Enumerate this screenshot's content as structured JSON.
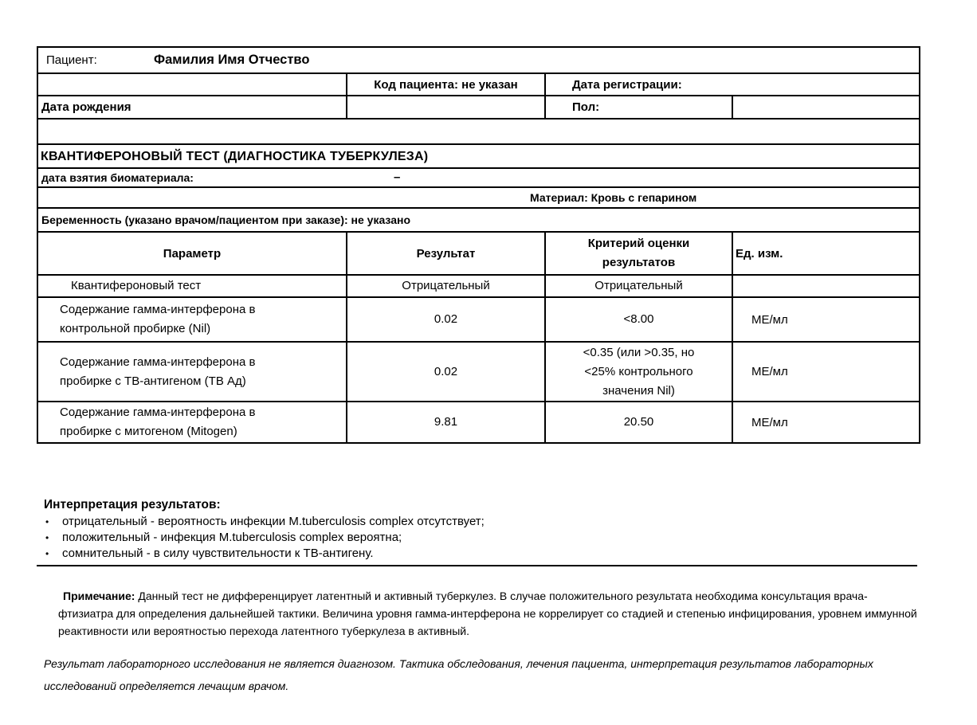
{
  "patient": {
    "label": "Пациент:",
    "name": "Фамилия Имя Отчество",
    "code_label": "Код пациента: не указан",
    "registration_label": "Дата регистрации:",
    "birth_date_label": "Дата рождения",
    "sex_label": "Пол:"
  },
  "test": {
    "title": "КВАНТИФЕРОНОВЫЙ ТЕСТ (ДИАГНОСТИКА ТУБЕРКУЛЕЗА)",
    "sample_date_label": "дата взятия биоматериала:",
    "sample_date_value": "–",
    "material": "Материал: Кровь с гепарином",
    "pregnancy": "Беременность (указано врачом/пациентом при заказе): не указано"
  },
  "results_table": {
    "headers": {
      "parameter": "Параметр",
      "result": "Результат",
      "criteria": "Критерий оценки результатов",
      "units": "Ед. изм."
    },
    "rows": [
      {
        "parameter": "Квантифероновый тест",
        "result": "Отрицательный",
        "criteria": "Отрицательный",
        "unit": ""
      },
      {
        "parameter": "Содержание гамма-интерферона в контрольной пробирке (Nil)",
        "result": "0.02",
        "criteria": "<8.00",
        "unit": "МЕ/мл"
      },
      {
        "parameter": "Содержание гамма-интерферона в пробирке с ТВ-антигеном (ТВ Ад)",
        "result": "0.02",
        "criteria": "<0.35 (или >0.35, но <25% контрольного значения Nil)",
        "unit": "МЕ/мл"
      },
      {
        "parameter": "Содержание гамма-интерферона в пробирке с митогеном (Mitogen)",
        "result": "9.81",
        "criteria": "20.50",
        "unit": "МЕ/мл"
      }
    ]
  },
  "interpretation": {
    "title": "Интерпретация результатов:",
    "items": [
      "отрицательный - вероятность инфекции M.tuberculosis complex отсутствует;",
      "положительный - инфекция M.tuberculosis complex вероятна;",
      "сомнительный - в силу чувствительности к ТВ-антигену."
    ]
  },
  "note": {
    "label": "Примечание:",
    "text": " Данный тест не дифференцирует латентный и активный туберкулез. В случае положительного результата необходима консультация врача-фтизиатра для определения дальнейшей тактики. Величина уровня гамма-интерферона не коррелирует со стадией и степенью инфицирования, уровнем иммунной реактивности или вероятностью перехода латентного туберкулеза в активный."
  },
  "disclaimer": "Результат лабораторного исследования не является диагнозом. Тактика обследования, лечения пациента, интерпретация результатов лабораторных исследований определяется лечащим врачом."
}
